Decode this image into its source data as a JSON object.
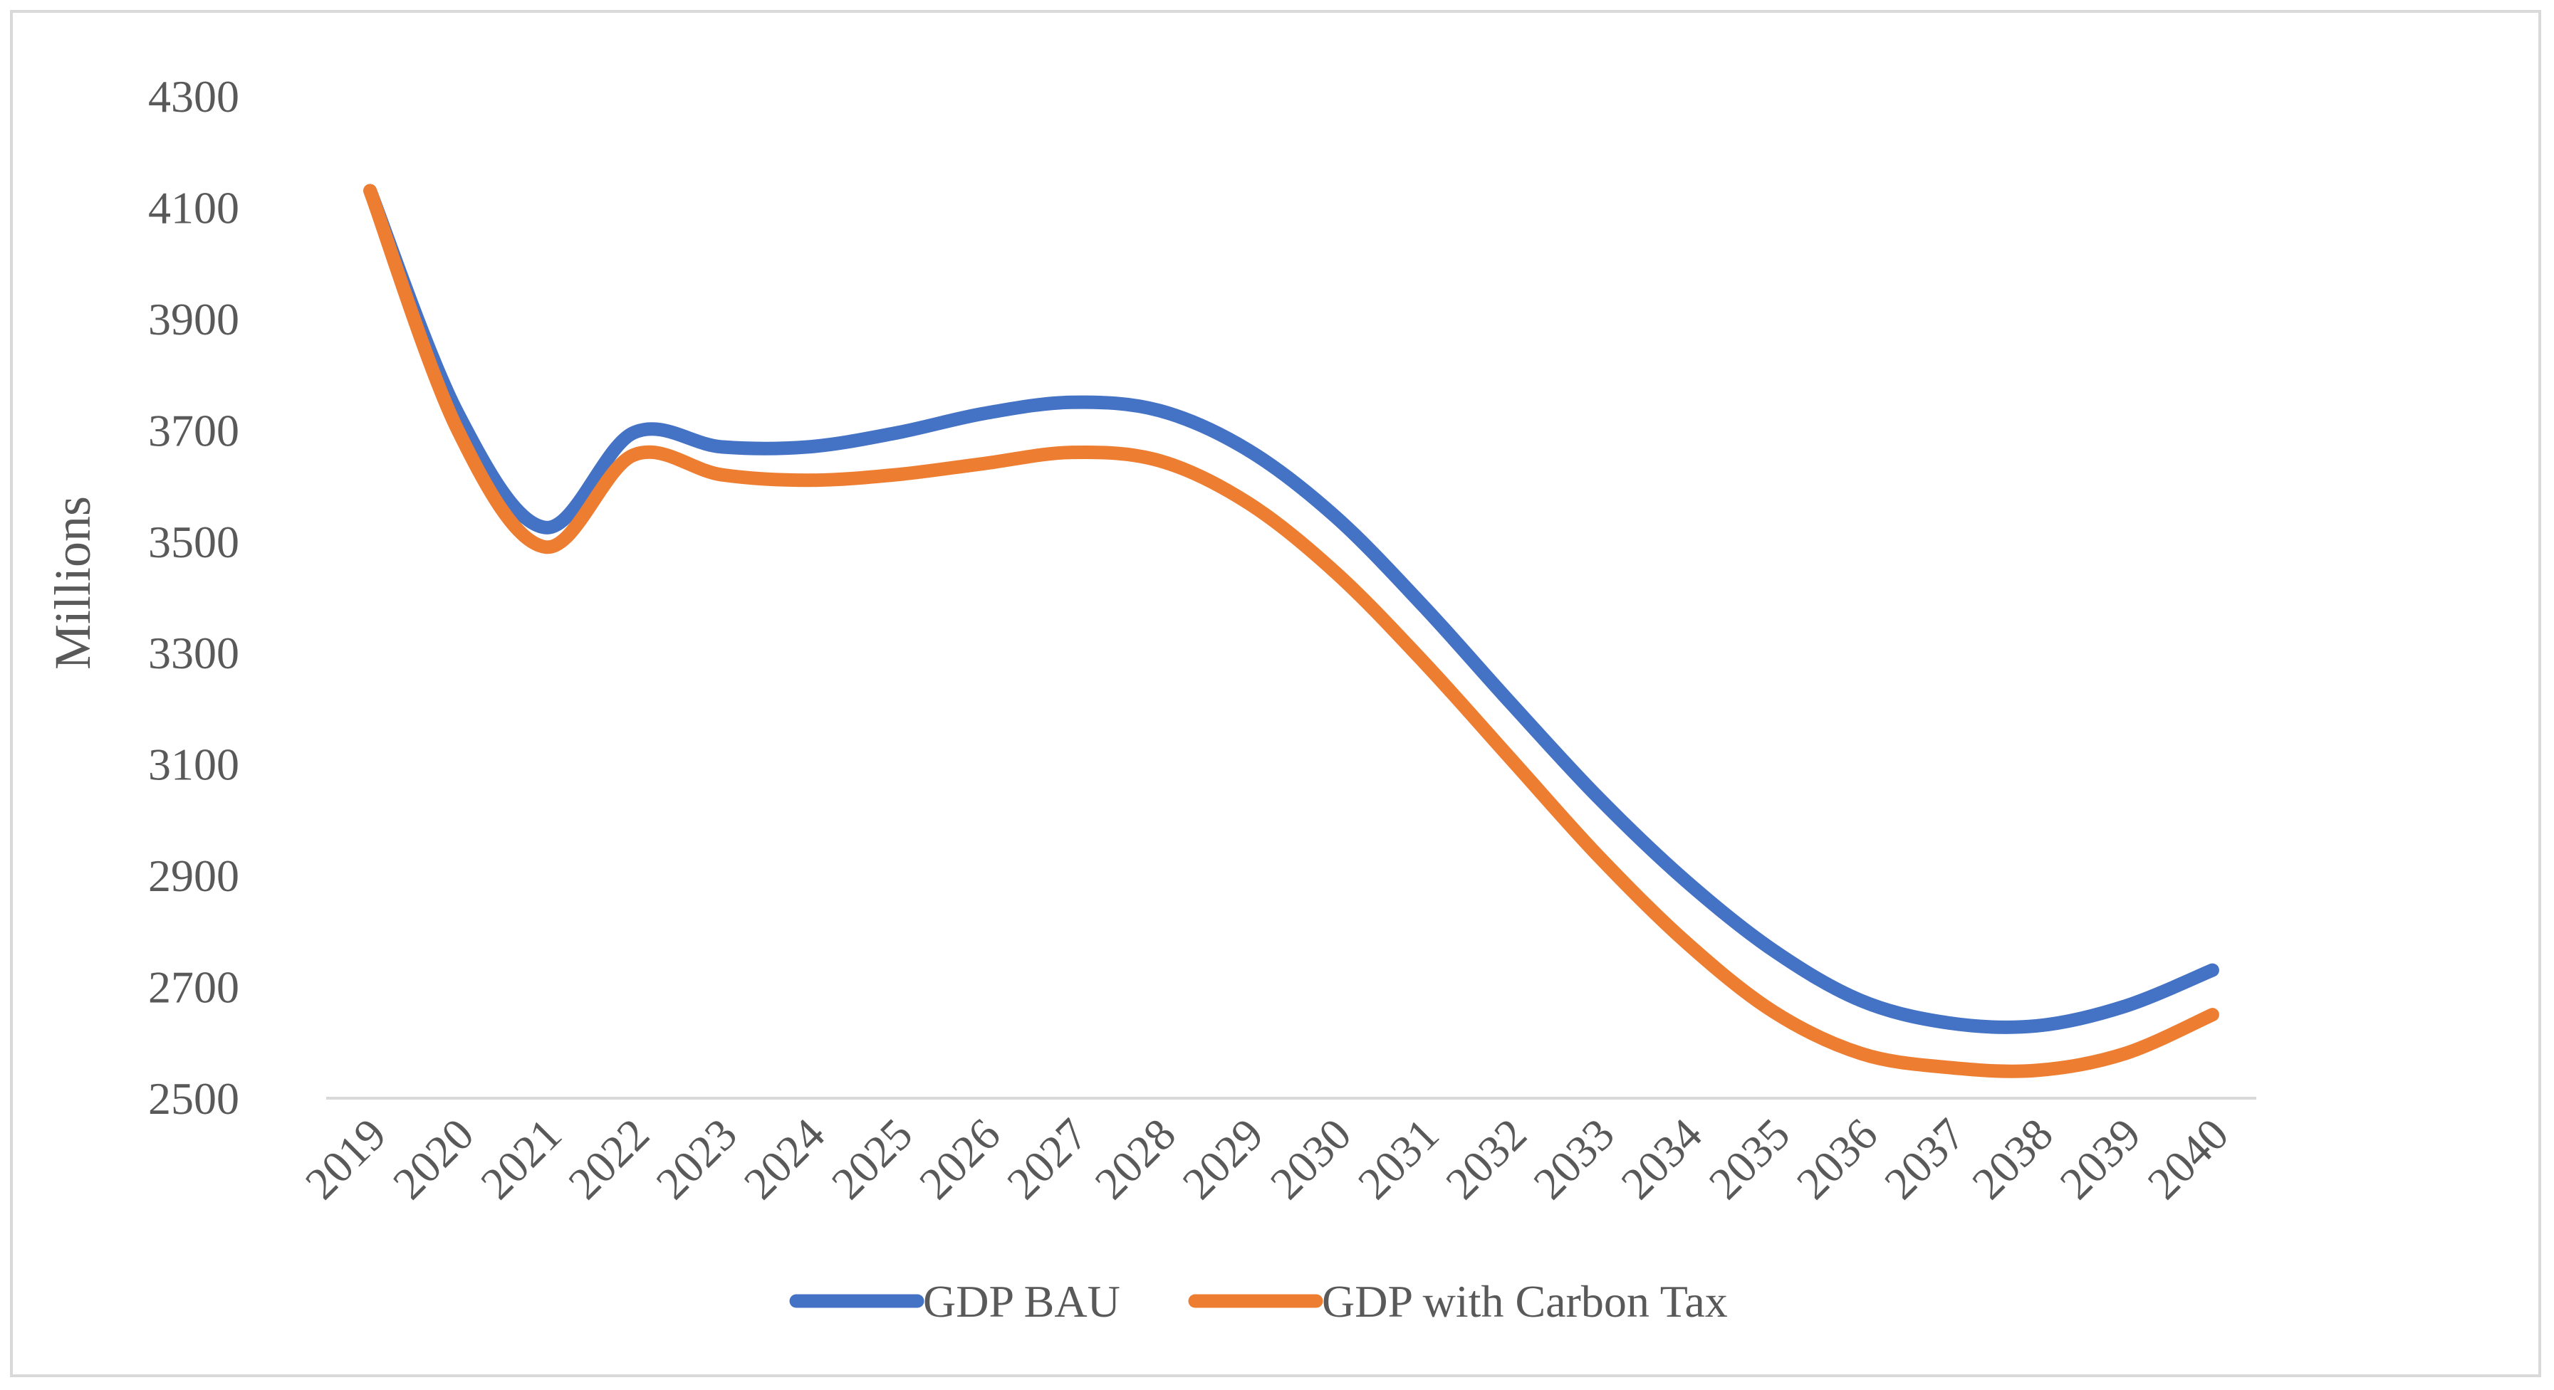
{
  "chart_data": {
    "type": "line",
    "title": "",
    "xlabel": "",
    "ylabel": "Millions",
    "ylim": [
      2500,
      4300
    ],
    "y_ticks": [
      "2500",
      "2700",
      "2900",
      "3100",
      "3300",
      "3500",
      "3700",
      "3900",
      "4100",
      "4300"
    ],
    "grid": false,
    "legend_position": "bottom",
    "categories": [
      "2019",
      "2020",
      "2021",
      "2022",
      "2023",
      "2024",
      "2025",
      "2026",
      "2027",
      "2028",
      "2029",
      "2030",
      "2031",
      "2032",
      "2033",
      "2034",
      "2035",
      "2036",
      "2037",
      "2038",
      "2039",
      "2040"
    ],
    "series": [
      {
        "name": "GDP BAU",
        "color": "#4472c4",
        "values": [
          4130,
          3730,
          3525,
          3695,
          3670,
          3670,
          3695,
          3730,
          3750,
          3735,
          3665,
          3545,
          3385,
          3210,
          3040,
          2890,
          2765,
          2675,
          2635,
          2630,
          2665,
          2730
        ]
      },
      {
        "name": "GDP with Carbon Tax",
        "color": "#ed7d31",
        "values": [
          4130,
          3700,
          3490,
          3655,
          3620,
          3610,
          3620,
          3640,
          3660,
          3645,
          3570,
          3445,
          3285,
          3110,
          2935,
          2780,
          2655,
          2580,
          2555,
          2550,
          2580,
          2650
        ]
      }
    ]
  }
}
